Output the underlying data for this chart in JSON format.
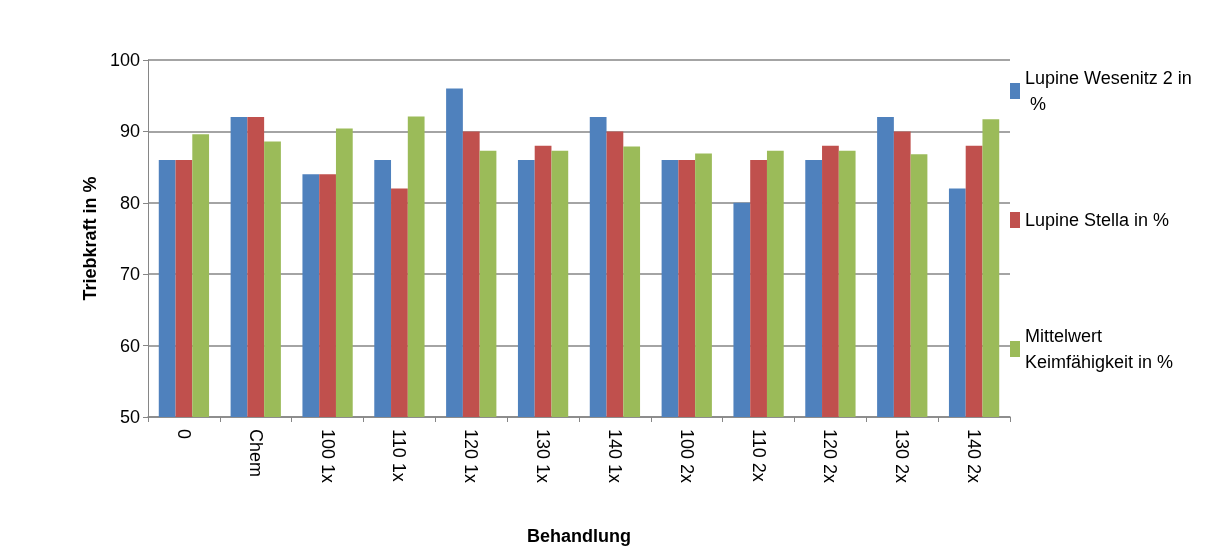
{
  "chart_data": {
    "type": "bar",
    "xlabel": "Behandlung",
    "ylabel": "Triebkraft in %",
    "categories": [
      "0",
      "Chem",
      "100 1x",
      "110 1x",
      "120 1x",
      "130 1x",
      "140 1x",
      "100 2x",
      "110 2x",
      "120 2x",
      "130 2x",
      "140 2x"
    ],
    "series": [
      {
        "name": "Lupine Wesenitz 2 in %",
        "color": "#4f81bd",
        "values": [
          86,
          92,
          84,
          86,
          96,
          86,
          92,
          86,
          80,
          86,
          92,
          82
        ]
      },
      {
        "name": "Lupine Stella in %",
        "color": "#c0504d",
        "values": [
          86,
          92,
          84,
          82,
          90,
          88,
          90,
          86,
          86,
          88,
          90,
          88
        ]
      },
      {
        "name": "Mittelwert Keimfähigkeit in %",
        "color": "#9bbb59",
        "values": [
          89.6,
          88.6,
          90.4,
          92.1,
          87.3,
          87.3,
          87.9,
          86.9,
          87.3,
          87.3,
          86.8,
          91.7
        ]
      }
    ],
    "ylim": [
      50,
      100
    ],
    "yticks": [
      50,
      60,
      70,
      80,
      90,
      100
    ],
    "grid": "y",
    "legend": "right"
  }
}
